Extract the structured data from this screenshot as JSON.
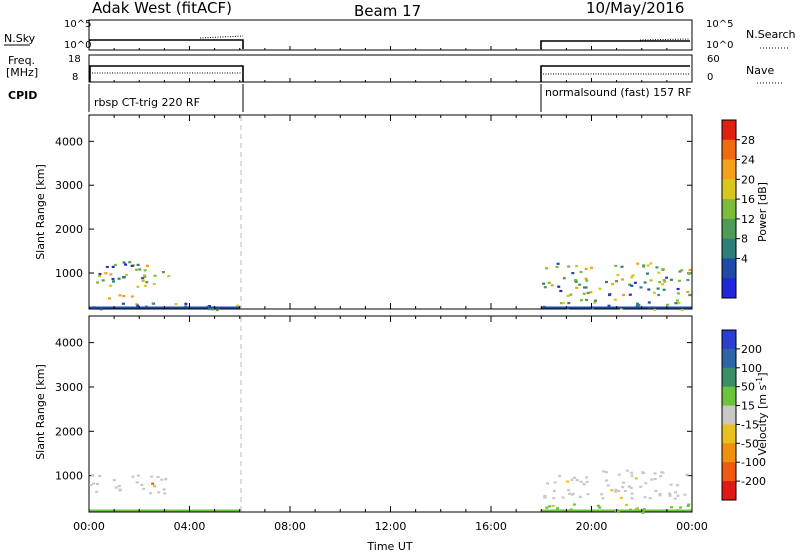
{
  "header": {
    "station": "Adak West (fitACF)",
    "beam": "Beam 17",
    "date": "10/May/2016"
  },
  "panels": {
    "noise": {
      "left_label": "N.Sky",
      "right_label": "N.Search",
      "left_ticks": [
        "10^5",
        "10^0"
      ],
      "right_ticks": [
        "10^5",
        "10^0"
      ]
    },
    "freq": {
      "left_label_1": "Freq.",
      "left_label_2": "[MHz]",
      "left_ticks": [
        "18",
        "8"
      ],
      "right_label": "Nave",
      "right_ticks": [
        "60",
        "0"
      ]
    },
    "cpid": {
      "label": "CPID",
      "segments": [
        {
          "start_h": 0.0,
          "end_h": 6.0,
          "text": "rbsp CT-trig 220 RF"
        },
        {
          "start_h": 18.0,
          "end_h": 24.0,
          "text": "normalsound (fast) 157 RF"
        }
      ]
    }
  },
  "chart_data": [
    {
      "type": "heatmap",
      "name": "power",
      "xlabel": "",
      "ylabel": "Slant Range [km]",
      "xlim": [
        0,
        24
      ],
      "ylim": [
        180,
        4600
      ],
      "yticks": [
        1000,
        2000,
        3000,
        4000
      ],
      "colorbar": {
        "label": "Power [dB]",
        "ticks": [
          "4",
          "8",
          "12",
          "16",
          "20",
          "24",
          "28"
        ],
        "colors": [
          "#1f27d8",
          "#1f4aa8",
          "#2e7e7a",
          "#4f9a55",
          "#7cbc3a",
          "#d9c61e",
          "#f5a01a",
          "#f06a12",
          "#e02010"
        ]
      },
      "regions": [
        {
          "t0": 0.0,
          "t1": 3.2,
          "r0": 650,
          "r1": 1300,
          "level": "mid"
        },
        {
          "t0": 0.6,
          "t1": 1.8,
          "r0": 420,
          "r1": 620,
          "level": "high"
        },
        {
          "t0": 18.0,
          "t1": 24.0,
          "r0": 500,
          "r1": 1250,
          "level": "mid"
        },
        {
          "t0": 0.0,
          "t1": 6.0,
          "r0": 180,
          "r1": 350,
          "level": "low"
        },
        {
          "t0": 18.0,
          "t1": 24.0,
          "r0": 180,
          "r1": 420,
          "level": "low"
        }
      ]
    },
    {
      "type": "heatmap",
      "name": "velocity",
      "xlabel": "Time UT",
      "ylabel": "Slant Range [km]",
      "xlim": [
        0,
        24
      ],
      "ylim": [
        180,
        4600
      ],
      "yticks": [
        1000,
        2000,
        3000,
        4000
      ],
      "xticks": [
        "00:00",
        "04:00",
        "08:00",
        "12:00",
        "16:00",
        "20:00",
        "00:00"
      ],
      "colorbar": {
        "label": "Velocity [m s-1]",
        "ticks": [
          "200",
          "100",
          "50",
          "15",
          "-15",
          "-50",
          "-100",
          "-200"
        ],
        "colors": [
          "#2a3fd0",
          "#2b65a8",
          "#3d8f6a",
          "#6bc43c",
          "#c8c8c8",
          "#e8c020",
          "#f09010",
          "#f05a10",
          "#e01818"
        ]
      },
      "regions": [
        {
          "t0": 0.0,
          "t1": 3.2,
          "r0": 600,
          "r1": 1050,
          "level": "gray"
        },
        {
          "t0": 18.0,
          "t1": 24.0,
          "r0": 500,
          "r1": 1150,
          "level": "gray"
        },
        {
          "t0": 18.0,
          "t1": 24.0,
          "r0": 180,
          "r1": 380,
          "level": "green"
        }
      ]
    }
  ]
}
